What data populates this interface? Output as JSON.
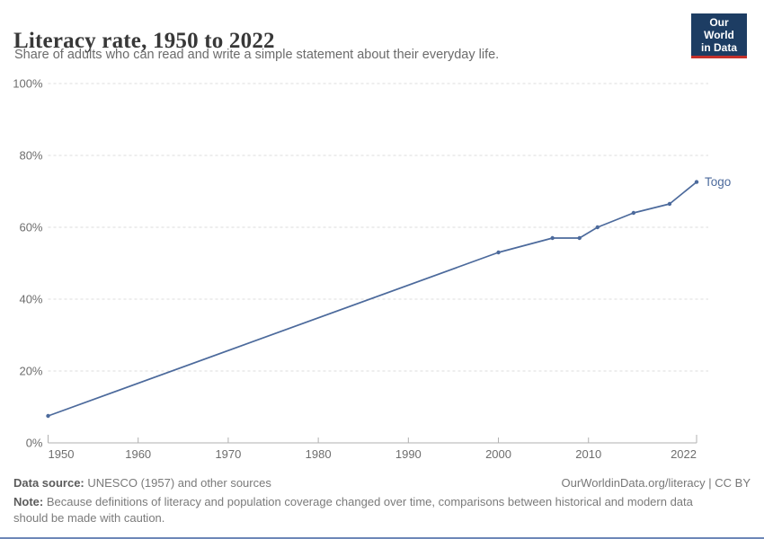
{
  "header": {
    "title": "Literacy rate, 1950 to 2022",
    "subtitle": "Share of adults who can read and write a simple statement about their everyday life."
  },
  "logo": {
    "line1": "Our World",
    "line2": "in Data"
  },
  "chart_data": {
    "type": "line",
    "title": "Literacy rate, 1950 to 2022",
    "xlabel": "",
    "ylabel": "",
    "xlim": [
      1950,
      2022
    ],
    "ylim": [
      0,
      100
    ],
    "grid": "horizontal-dashed",
    "legend_position": "end-of-line-label",
    "x_ticks": [
      {
        "value": 1950,
        "label": "1950"
      },
      {
        "value": 1960,
        "label": "1960"
      },
      {
        "value": 1970,
        "label": "1970"
      },
      {
        "value": 1980,
        "label": "1980"
      },
      {
        "value": 1990,
        "label": "1990"
      },
      {
        "value": 2000,
        "label": "2000"
      },
      {
        "value": 2010,
        "label": "2010"
      },
      {
        "value": 2022,
        "label": "2022"
      }
    ],
    "y_ticks": [
      {
        "value": 0,
        "label": "0%"
      },
      {
        "value": 20,
        "label": "20%"
      },
      {
        "value": 40,
        "label": "40%"
      },
      {
        "value": 60,
        "label": "60%"
      },
      {
        "value": 80,
        "label": "80%"
      },
      {
        "value": 100,
        "label": "100%"
      }
    ],
    "series": [
      {
        "name": "Togo",
        "color": "#4c6a9c",
        "x": [
          1950,
          2000,
          2006,
          2009,
          2011,
          2015,
          2019,
          2022
        ],
        "values": [
          7.5,
          53,
          57,
          57,
          60,
          64,
          66.5,
          72.6
        ]
      }
    ]
  },
  "footer": {
    "source_label": "Data source:",
    "source_text": " UNESCO (1957) and other sources",
    "url_text": "OurWorldinData.org/literacy | CC BY",
    "note_label": "Note:",
    "note_text": " Because definitions of literacy and population coverage changed over time, comparisons between historical and modern data should be made with caution."
  },
  "colors": {
    "series": "#4c6a9c",
    "grid": "#dddddd",
    "axis": "#b0b0b0",
    "tick_label": "#6e6e6e",
    "logo_bg": "#1d3d63",
    "logo_accent": "#c5312b"
  }
}
